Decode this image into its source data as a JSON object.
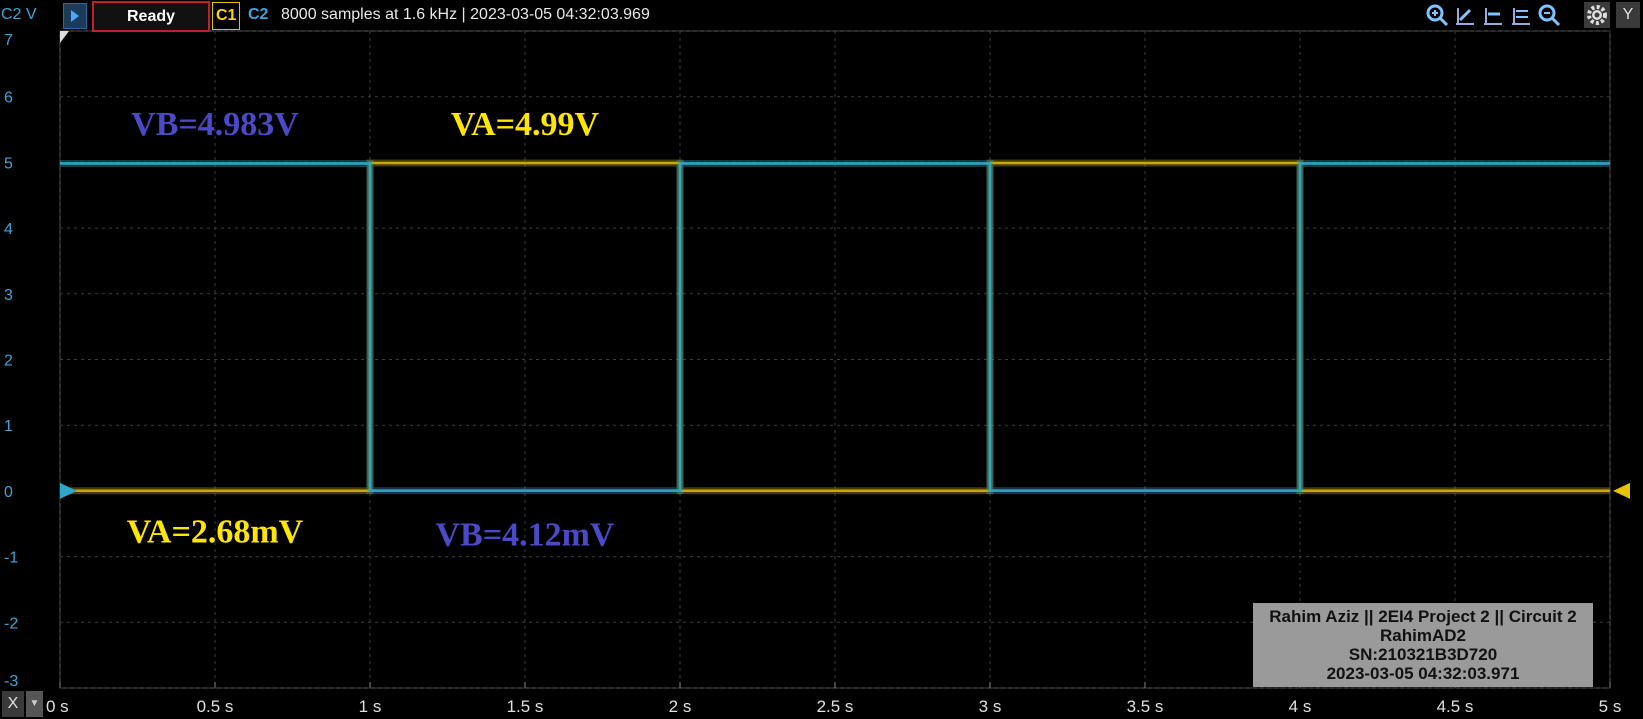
{
  "toolbar": {
    "channel_axis_label": "C2 V",
    "status": "Ready",
    "c1_label": "C1",
    "c2_label": "C2",
    "info": "8000 samples at 1.6 kHz | 2023-03-05 04:32:03.969",
    "x_button": "X",
    "y_button": "Y",
    "icons": [
      "zoom-in-icon",
      "cursor-icon",
      "cursor-icon",
      "cursor-icon",
      "zoom-out-icon",
      "gear-icon"
    ]
  },
  "chart_data": {
    "type": "line",
    "x_ticks": [
      "0 s",
      "0.5 s",
      "1 s",
      "1.5 s",
      "2 s",
      "2.5 s",
      "3 s",
      "3.5 s",
      "4 s",
      "4.5 s",
      "5 s"
    ],
    "y_ticks": [
      "-3",
      "-2",
      "-1",
      "0",
      "1",
      "2",
      "3",
      "4",
      "5",
      "6",
      "7"
    ],
    "xlim": [
      0,
      5
    ],
    "ylim": [
      -3,
      7
    ],
    "grid": true,
    "series": [
      {
        "name": "C1",
        "color": "#c9a800",
        "x": [
          0,
          1,
          1,
          2,
          2,
          3,
          3,
          4,
          4,
          5
        ],
        "y": [
          0.003,
          0.003,
          4.99,
          4.99,
          0.003,
          0.003,
          4.99,
          4.99,
          0.003,
          0.003
        ]
      },
      {
        "name": "C2",
        "color": "#2ea6c8",
        "x": [
          0,
          1,
          1,
          2,
          2,
          3,
          3,
          4,
          4,
          5
        ],
        "y": [
          4.983,
          4.983,
          0.004,
          0.004,
          4.983,
          4.983,
          0.004,
          0.004,
          4.983,
          4.983
        ]
      }
    ],
    "annotations": [
      {
        "text": "VB=4.983V",
        "x": 0.5,
        "y": 5.6,
        "color": "#4a4ac8"
      },
      {
        "text": "VA=4.99V",
        "x": 1.5,
        "y": 5.6,
        "color": "#ffe600"
      },
      {
        "text": "VA=2.68mV",
        "x": 0.5,
        "y": -0.6,
        "color": "#ffe600"
      },
      {
        "text": "VB=4.12mV",
        "x": 1.5,
        "y": -0.65,
        "color": "#4a4ac8"
      }
    ],
    "info_box": {
      "lines": [
        "Rahim Aziz || 2EI4 Project 2 || Circuit 2",
        "RahimAD2",
        "SN:210321B3D720",
        "2023-03-05 04:32:03.971"
      ],
      "background": "#9a9a9a"
    }
  },
  "colors": {
    "background": "#000000",
    "grid": "#3c3c3c",
    "c1": "#c9a800",
    "c2": "#2ea6c8",
    "status_border": "#c0202a"
  }
}
